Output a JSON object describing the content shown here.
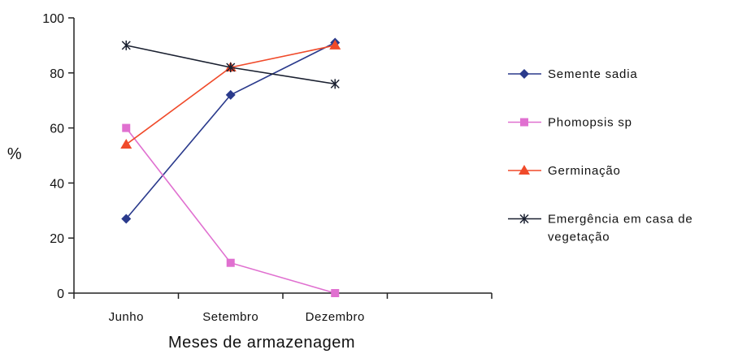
{
  "chart_data": {
    "type": "line",
    "title": "",
    "xlabel": "Meses de armazenagem",
    "ylabel": "%",
    "categories": [
      "Junho",
      "Setembro",
      "Dezembro"
    ],
    "ylim": [
      0,
      100
    ],
    "yticks": [
      0,
      20,
      40,
      60,
      80,
      100
    ],
    "grid": false,
    "legend": "right",
    "series": [
      {
        "name": "Semente sadia",
        "values": [
          27,
          72,
          91
        ],
        "color": "#2a3a8c",
        "marker": "diamond"
      },
      {
        "name": "Phomopsis sp",
        "values": [
          60,
          11,
          0
        ],
        "color": "#e070d0",
        "marker": "square"
      },
      {
        "name": "Germinação",
        "values": [
          54,
          82,
          90
        ],
        "color": "#f04a2a",
        "marker": "triangle"
      },
      {
        "name": "Emergência em casa de vegetação",
        "name_lines": [
          "Emergência em casa de",
          "vegetação"
        ],
        "values": [
          90,
          82,
          76
        ],
        "color": "#1a2030",
        "marker": "star"
      }
    ]
  }
}
